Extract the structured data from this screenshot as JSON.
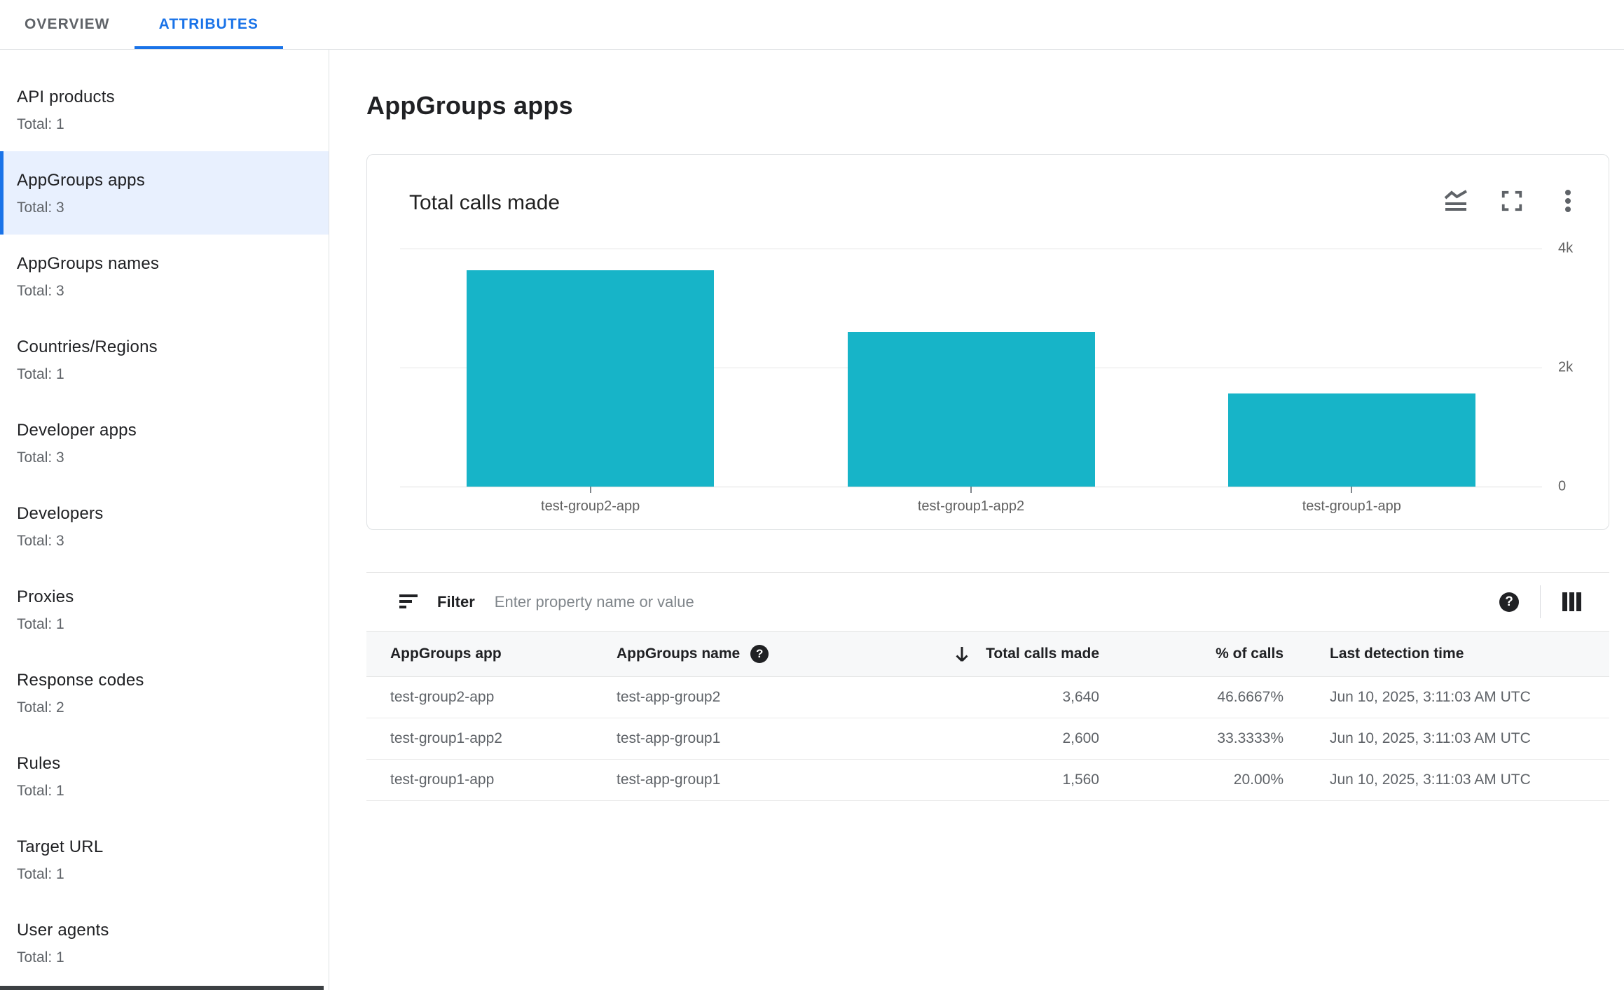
{
  "tabs": [
    {
      "label": "OVERVIEW",
      "active": false
    },
    {
      "label": "ATTRIBUTES",
      "active": true
    }
  ],
  "sidebar": {
    "selected_index": 1,
    "items": [
      {
        "label": "API products",
        "total": "Total: 1"
      },
      {
        "label": "AppGroups apps",
        "total": "Total: 3"
      },
      {
        "label": "AppGroups names",
        "total": "Total: 3"
      },
      {
        "label": "Countries/Regions",
        "total": "Total: 1"
      },
      {
        "label": "Developer apps",
        "total": "Total: 3"
      },
      {
        "label": "Developers",
        "total": "Total: 3"
      },
      {
        "label": "Proxies",
        "total": "Total: 1"
      },
      {
        "label": "Response codes",
        "total": "Total: 2"
      },
      {
        "label": "Rules",
        "total": "Total: 1"
      },
      {
        "label": "Target URL",
        "total": "Total: 1"
      },
      {
        "label": "User agents",
        "total": "Total: 1"
      }
    ]
  },
  "page": {
    "title": "AppGroups apps"
  },
  "chart_data": {
    "type": "bar",
    "title": "Total calls made",
    "categories": [
      "test-group2-app",
      "test-group1-app2",
      "test-group1-app"
    ],
    "values": [
      3640,
      2600,
      1560
    ],
    "series_name": "Total calls made",
    "ylim": [
      0,
      4000
    ],
    "yticks": [
      {
        "label": "4k",
        "value": 4000
      },
      {
        "label": "2k",
        "value": 2000
      },
      {
        "label": "0",
        "value": 0
      }
    ],
    "grid": true,
    "legend": false,
    "bar_color": "#17B4C8"
  },
  "filter": {
    "label": "Filter",
    "placeholder": "Enter property name or value"
  },
  "table": {
    "columns": [
      {
        "label": "AppGroups app"
      },
      {
        "label": "AppGroups name",
        "has_help_icon": true
      },
      {
        "label": "Total calls made",
        "sorted": "desc"
      },
      {
        "label": "% of calls"
      },
      {
        "label": "Last detection time"
      }
    ],
    "rows": [
      {
        "app": "test-group2-app",
        "name": "test-app-group2",
        "calls": "3,640",
        "pct": "46.6667%",
        "last_detection": "Jun 10, 2025, 3:11:03 AM UTC"
      },
      {
        "app": "test-group1-app2",
        "name": "test-app-group1",
        "calls": "2,600",
        "pct": "33.3333%",
        "last_detection": "Jun 10, 2025, 3:11:03 AM UTC"
      },
      {
        "app": "test-group1-app",
        "name": "test-app-group1",
        "calls": "1,560",
        "pct": "20.00%",
        "last_detection": "Jun 10, 2025, 3:11:03 AM UTC"
      }
    ]
  },
  "icons": {
    "help_glyph": "?",
    "chart_type": "area-chart-icon",
    "fullscreen": "fullscreen-icon",
    "more": "kebab-menu-icon",
    "filter": "filter-icon",
    "columns": "columns-icon",
    "sort": "arrow-down-icon"
  },
  "colors": {
    "accent_blue": "#1A73E8",
    "selected_item_bg": "#E8F0FE",
    "bar_teal": "#17B4C8",
    "divider": "#DEE1E3",
    "table_header_bg": "#F7F8F9",
    "secondary_text": "#5F6368"
  }
}
